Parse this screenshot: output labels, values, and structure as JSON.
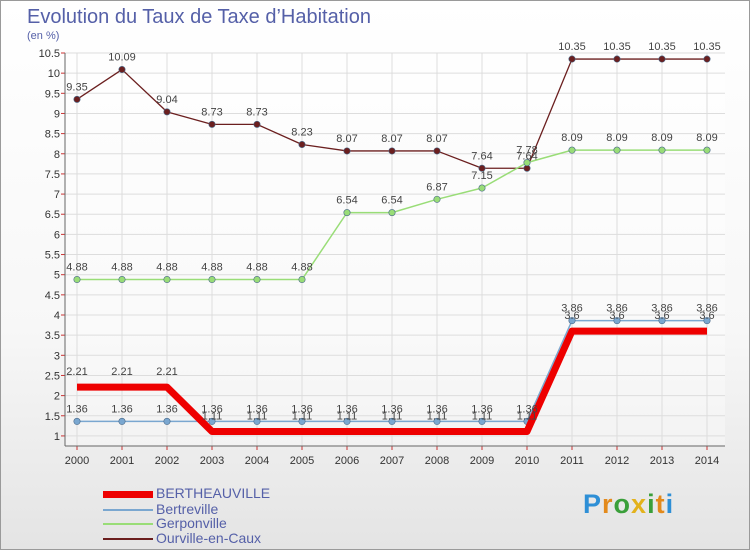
{
  "title": "Evolution du Taux de Taxe d’Habitation",
  "subtitle": "(en %)",
  "logo": "Proxiti",
  "colors": {
    "title": "#5560a8",
    "grid": "#dddddd",
    "axis": "#666666",
    "axis_tick": "#cc3333"
  },
  "chart_data": {
    "type": "line",
    "x": [
      "2000",
      "2001",
      "2002",
      "2003",
      "2004",
      "2005",
      "2006",
      "2007",
      "2008",
      "2009",
      "2010",
      "2011",
      "2012",
      "2013",
      "2014"
    ],
    "ylim": [
      0.75,
      10.5
    ],
    "yticks": [
      "1",
      "1.5",
      "2",
      "2.5",
      "3",
      "3.5",
      "4",
      "4.5",
      "5",
      "5.5",
      "6",
      "6.5",
      "7",
      "7.5",
      "8",
      "8.5",
      "9",
      "9.5",
      "10",
      "10.5"
    ],
    "grid": true,
    "legend_position": "bottom-left",
    "series": [
      {
        "name": "Ourville-en-Caux",
        "color": "#6b1f1f",
        "width": 1.3,
        "values": [
          9.35,
          10.09,
          9.04,
          8.73,
          8.73,
          8.23,
          8.07,
          8.07,
          8.07,
          7.64,
          7.64,
          10.35,
          10.35,
          10.35,
          10.35
        ],
        "labels": [
          "9.35",
          "10.09",
          "9.04",
          "8.73",
          "8.73",
          "8.23",
          "8.07",
          "8.07",
          "8.07",
          "7.64",
          "7.64",
          "10.35",
          "10.35",
          "10.35",
          "10.35"
        ]
      },
      {
        "name": "Gerponville",
        "color": "#99dd77",
        "width": 1.5,
        "values": [
          4.88,
          4.88,
          4.88,
          4.88,
          4.88,
          4.88,
          6.54,
          6.54,
          6.87,
          7.15,
          7.78,
          8.09,
          8.09,
          8.09,
          8.09
        ],
        "labels": [
          "4.88",
          "4.88",
          "4.88",
          "4.88",
          "4.88",
          "4.88",
          "6.54",
          "6.54",
          "6.87",
          "7.15",
          "7.78",
          "8.09",
          "8.09",
          "8.09",
          "8.09"
        ]
      },
      {
        "name": "Bertreville",
        "color": "#7aa7d0",
        "width": 1.5,
        "values": [
          1.36,
          1.36,
          1.36,
          1.36,
          1.36,
          1.36,
          1.36,
          1.36,
          1.36,
          1.36,
          1.36,
          3.86,
          3.86,
          3.86,
          3.86
        ],
        "labels": [
          "1.36",
          "1.36",
          "1.36",
          "1.36",
          "1.36",
          "1.36",
          "1.36",
          "1.36",
          "1.36",
          "1.36",
          "1.36",
          "3.86",
          "3.86",
          "3.86",
          "3.86"
        ]
      },
      {
        "name": "BERTHEAUVILLE",
        "color": "#ee0000",
        "width": 7,
        "values": [
          2.21,
          2.21,
          2.21,
          1.11,
          1.11,
          1.11,
          1.11,
          1.11,
          1.11,
          1.11,
          1.11,
          3.6,
          3.6,
          3.6,
          3.6
        ],
        "labels": [
          "2.21",
          "2.21",
          "2.21",
          "1.11",
          "1.11",
          "1.11",
          "1.11",
          "1.11",
          "1.11",
          "1.11",
          "1.11",
          "3.6",
          "3.6",
          "3.6",
          "3.6"
        ]
      }
    ]
  }
}
